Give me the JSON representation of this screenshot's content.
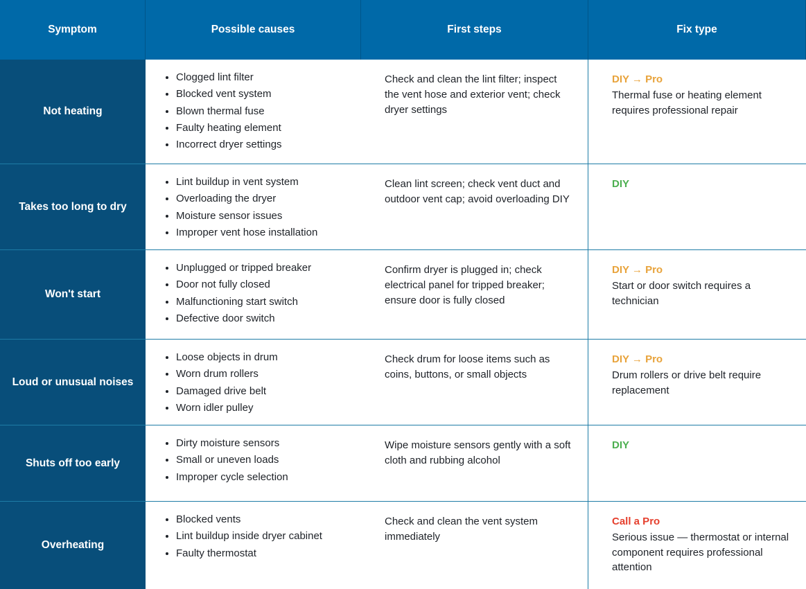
{
  "table": {
    "headers": [
      "Symptom",
      "Possible causes",
      "First steps",
      "Fix type"
    ],
    "rows": [
      {
        "symptom": "Not heating",
        "causes": [
          "Clogged lint filter",
          "Blocked vent system",
          "Blown thermal fuse",
          "Faulty heating element",
          "Incorrect dryer settings"
        ],
        "first_steps": "Check and clean the lint filter; inspect the vent hose and exterior vent; check dryer settings",
        "fix": {
          "label": "DIY → Pro",
          "desc": "Thermal fuse or heating element requires professional repair"
        }
      },
      {
        "symptom": "Takes too long to dry",
        "causes": [
          "Lint buildup in vent system",
          "Overloading the dryer",
          "Moisture sensor issues",
          "Improper vent hose installation"
        ],
        "first_steps": "Clean lint screen; check vent duct and outdoor vent cap; avoid overloading DIY",
        "fix": {
          "label": "DIY",
          "desc": ""
        }
      },
      {
        "symptom": "Won't start",
        "causes": [
          "Unplugged or tripped breaker",
          "Door not fully closed",
          "Malfunctioning start switch",
          "Defective door switch"
        ],
        "first_steps": "Confirm dryer is plugged in; check electrical panel for tripped breaker; ensure door is fully closed",
        "fix": {
          "label": "DIY → Pro",
          "desc": "Start or door switch requires a technician"
        }
      },
      {
        "symptom": "Loud or unusual noises",
        "causes": [
          "Loose objects in drum",
          "Worn drum rollers",
          "Damaged drive belt",
          "Worn idler pulley"
        ],
        "first_steps": "Check drum for loose items such as coins, buttons, or small objects",
        "fix": {
          "label": "DIY → Pro",
          "desc": "Drum rollers or drive belt require replacement"
        }
      },
      {
        "symptom": "Shuts off too early",
        "causes": [
          "Dirty moisture sensors",
          "Small or uneven loads",
          "Improper cycle selection"
        ],
        "first_steps": "Wipe moisture sensors gently with a soft cloth and rubbing alcohol",
        "fix": {
          "label": "DIY",
          "desc": ""
        }
      },
      {
        "symptom": "Overheating",
        "causes": [
          "Blocked vents",
          "Lint buildup inside dryer cabinet",
          "Faulty thermostat"
        ],
        "first_steps": "Check and clean the vent system immediately",
        "fix": {
          "label": "Call a Pro",
          "desc": "Serious issue — thermostat or internal component requires professional attention"
        }
      }
    ],
    "colors": {
      "header_bg": "#0069A8",
      "symptom_bg": "#084E7A",
      "border": "#1E7CA6",
      "fix_diy_pro": "#E8A33B",
      "fix_diy": "#4CAF50",
      "fix_call_pro": "#E5402E",
      "header_text": "#FFFFFF",
      "body_text": "#1E2228"
    }
  }
}
